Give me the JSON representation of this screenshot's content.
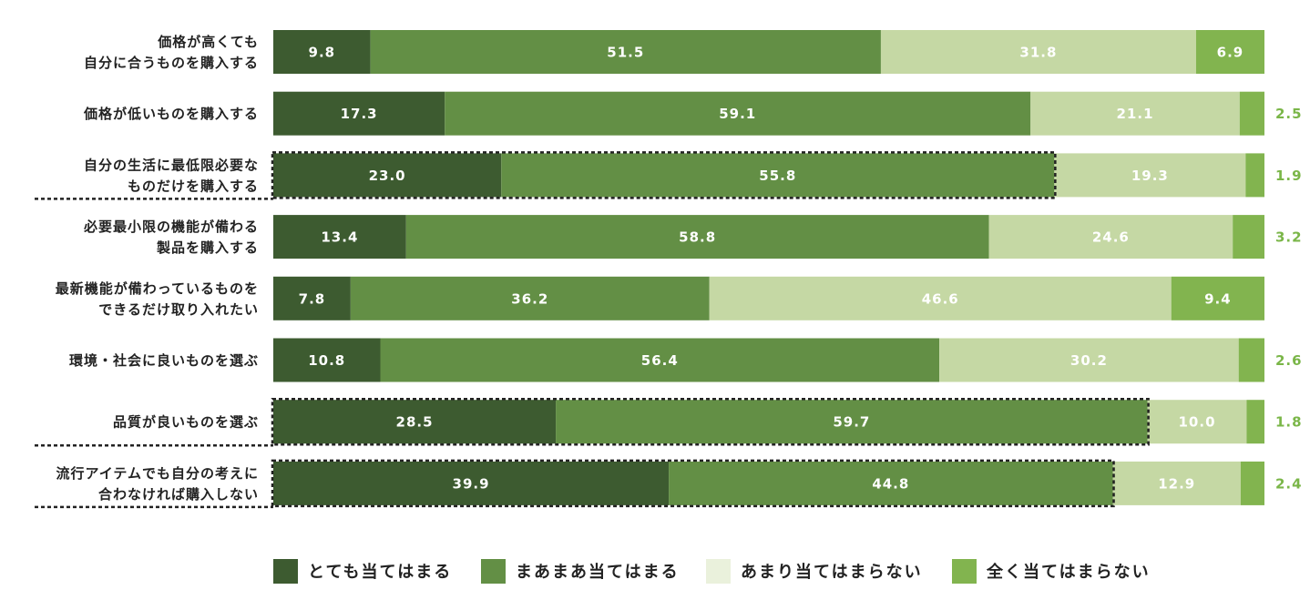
{
  "chart_data": {
    "type": "bar",
    "orientation": "horizontal",
    "stacked": true,
    "xlim": [
      0,
      100
    ],
    "grid": false,
    "legend_position": "bottom",
    "categories": [
      [
        "価格が高くても",
        "自分に合うものを購入する"
      ],
      [
        "価格が低いものを購入する"
      ],
      [
        "自分の生活に最低限必要な",
        "ものだけを購入する"
      ],
      [
        "必要最小限の機能が備わる",
        "製品を購入する"
      ],
      [
        "最新機能が備わっているものを",
        "できるだけ取り入れたい"
      ],
      [
        "環境・社会に良いものを選ぶ"
      ],
      [
        "品質が良いものを選ぶ"
      ],
      [
        "流行アイテムでも自分の考えに",
        "合わなければ購入しない"
      ]
    ],
    "highlighted": [
      false,
      false,
      true,
      false,
      false,
      false,
      true,
      true
    ],
    "series": [
      {
        "name": "とても当てはまる",
        "color": "#3d5b30",
        "values": [
          9.8,
          17.3,
          23.0,
          13.4,
          7.8,
          10.8,
          28.5,
          39.9
        ]
      },
      {
        "name": "まあまあ当てはまる",
        "color": "#638f45",
        "values": [
          51.5,
          59.1,
          55.8,
          58.8,
          36.2,
          56.4,
          59.7,
          44.8
        ]
      },
      {
        "name": "あまり当てはまらない",
        "color": "#c5d8a4",
        "values": [
          31.8,
          21.1,
          19.3,
          24.6,
          46.6,
          30.2,
          10.0,
          12.9
        ]
      },
      {
        "name": "全く当てはまらない",
        "color": "#82b44f",
        "values": [
          6.9,
          2.5,
          1.9,
          3.2,
          9.4,
          2.6,
          1.8,
          2.4
        ]
      }
    ],
    "legend_swatch_colors": [
      "#3d5b30",
      "#638f45",
      "#eaf1dc",
      "#82b44f"
    ]
  }
}
